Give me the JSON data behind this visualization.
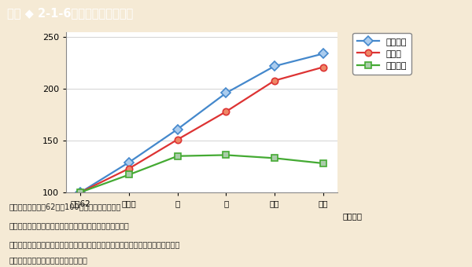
{
  "x_labels": [
    "昭和62",
    "平成２",
    "５",
    "８",
    "１１",
    "１４"
  ],
  "x_positions": [
    0,
    1,
    2,
    3,
    4,
    5
  ],
  "xlabel_suffix": "（年度）",
  "ylim": [
    100,
    255
  ],
  "yticks": [
    100,
    150,
    200,
    250
  ],
  "series": [
    {
      "name": "博物館数",
      "values": [
        100,
        129,
        161,
        196,
        222,
        234
      ],
      "color": "#4488cc",
      "marker": "D",
      "marker_facecolor": "#aaccee",
      "marker_edgecolor": "#4488cc"
    },
    {
      "name": "職員数",
      "values": [
        100,
        123,
        151,
        178,
        208,
        221
      ],
      "color": "#dd3333",
      "marker": "o",
      "marker_facecolor": "#ee8866",
      "marker_edgecolor": "#dd3333"
    },
    {
      "name": "入館者数",
      "values": [
        100,
        117,
        135,
        136,
        133,
        128
      ],
      "color": "#44aa33",
      "marker": "s",
      "marker_facecolor": "#aaccaa",
      "marker_edgecolor": "#44aa33"
    }
  ],
  "notes_line1": "（注）　１　昭和62年を100とした指数である。",
  "notes_line2": "　　　　２　入館者数については，前年度閲の数である。",
  "notes_line3": "　　　　３　登録博物館，博物館相当施設，博物館類似施設の合計を表している。",
  "notes_line4": "（資料）文部科学省「社会教育調査」",
  "header_text": "図表 ◆ 2-1-6　博物館数等の推移",
  "header_bg_color": "#2bbcb8",
  "plot_bg_color": "#ffffff",
  "outer_bg_color": "#f5ead5",
  "border_color": "#888888"
}
